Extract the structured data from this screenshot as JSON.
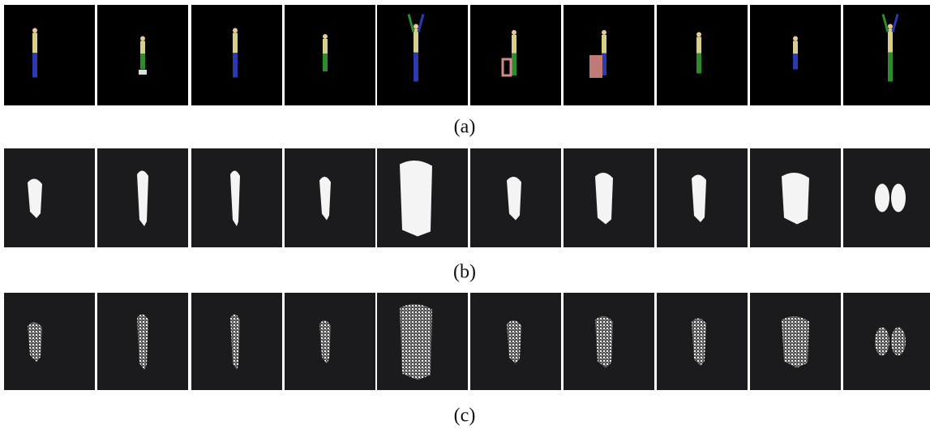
{
  "figure": {
    "rows": [
      {
        "label": "(a)"
      },
      {
        "label": "(b)"
      },
      {
        "label": "(c)"
      }
    ]
  }
}
